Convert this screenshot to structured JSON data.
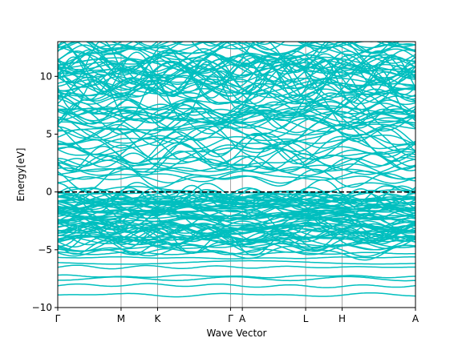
{
  "chart_data": {
    "type": "line",
    "title": "",
    "xlabel": "Wave Vector",
    "ylabel": "Energy[eV]",
    "ylim": [
      -10,
      13
    ],
    "yticks": [
      -10,
      -5,
      0,
      5,
      10
    ],
    "ytick_labels": [
      "−10",
      "−5",
      "0",
      "5",
      "10"
    ],
    "xlim": [
      0,
      10
    ],
    "high_symmetry_points": [
      {
        "label": "Γ",
        "x": 0.0
      },
      {
        "label": "M",
        "x": 1.77
      },
      {
        "label": "K",
        "x": 2.79
      },
      {
        "label": "Γ",
        "x": 4.83
      },
      {
        "label": "A",
        "x": 5.16
      },
      {
        "label": "L",
        "x": 6.93
      },
      {
        "label": "H",
        "x": 7.95
      },
      {
        "label": "A",
        "x": 10.0
      }
    ],
    "fermi_level": 0,
    "grid": "vertical lines at high-symmetry points",
    "band_color": "#00BFBF",
    "fermi_line_color": "#000000",
    "valence_band_region": [
      -5.5,
      0
    ],
    "conduction_band_region": [
      0,
      13
    ],
    "deep_bands": [
      -8.9,
      -8.1,
      -7.5,
      -7.3,
      -6.5,
      -6.1,
      -5.7,
      -5.3
    ]
  }
}
